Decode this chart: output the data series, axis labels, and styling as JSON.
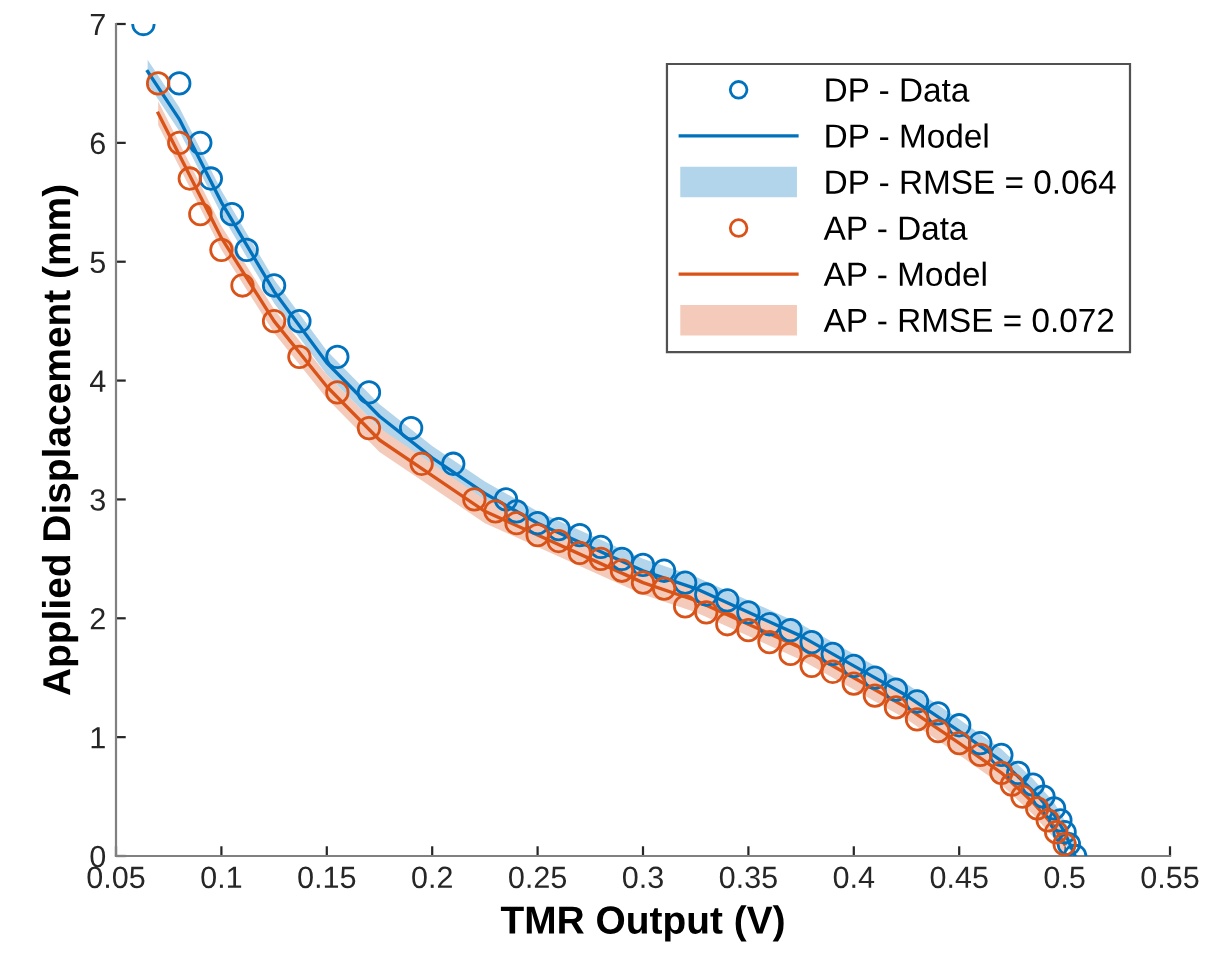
{
  "chart_data": {
    "type": "scatter",
    "xlabel": "TMR Output (V)",
    "ylabel": "Applied Displacement (mm)",
    "xlim": [
      0.05,
      0.55
    ],
    "xticks": [
      0.05,
      0.1,
      0.15,
      0.2,
      0.25,
      0.3,
      0.35,
      0.4,
      0.45,
      0.5,
      0.55
    ],
    "ylim": [
      0,
      7
    ],
    "yticks": [
      0,
      1,
      2,
      3,
      4,
      5,
      6,
      7
    ],
    "grid": false,
    "legend": "top right",
    "annotations": [
      "DP - RMSE = 0.064",
      "AP - RMSE = 0.072"
    ],
    "series": [
      {
        "marker": "circle",
        "name": "DP - Data",
        "color": "#0072bd",
        "x": [
          0.063,
          0.08,
          0.09,
          0.095,
          0.105,
          0.112,
          0.125,
          0.137,
          0.155,
          0.17,
          0.19,
          0.21,
          0.235,
          0.24,
          0.25,
          0.26,
          0.27,
          0.28,
          0.29,
          0.3,
          0.31,
          0.32,
          0.33,
          0.34,
          0.35,
          0.36,
          0.37,
          0.38,
          0.39,
          0.4,
          0.41,
          0.42,
          0.43,
          0.44,
          0.45,
          0.46,
          0.47,
          0.478,
          0.485,
          0.49,
          0.495,
          0.498,
          0.5,
          0.502,
          0.505
        ],
        "values": [
          7.0,
          6.5,
          6.0,
          5.7,
          5.4,
          5.1,
          4.8,
          4.5,
          4.2,
          3.9,
          3.6,
          3.3,
          3.0,
          2.9,
          2.8,
          2.75,
          2.7,
          2.6,
          2.5,
          2.45,
          2.4,
          2.3,
          2.2,
          2.15,
          2.05,
          1.95,
          1.9,
          1.8,
          1.7,
          1.6,
          1.5,
          1.4,
          1.3,
          1.2,
          1.1,
          0.95,
          0.85,
          0.7,
          0.6,
          0.5,
          0.4,
          0.3,
          0.2,
          0.1,
          0.0
        ]
      },
      {
        "type": "line",
        "marker": "none",
        "name": "DP - Model",
        "color": "#0072bd",
        "x": [
          0.065,
          0.08,
          0.1,
          0.125,
          0.15,
          0.175,
          0.2,
          0.225,
          0.25,
          0.275,
          0.3,
          0.325,
          0.35,
          0.375,
          0.4,
          0.425,
          0.45,
          0.47,
          0.485,
          0.495,
          0.5,
          0.505
        ],
        "values": [
          6.6,
          6.2,
          5.5,
          4.75,
          4.15,
          3.7,
          3.35,
          3.05,
          2.8,
          2.6,
          2.4,
          2.25,
          2.05,
          1.85,
          1.6,
          1.35,
          1.05,
          0.8,
          0.55,
          0.35,
          0.2,
          0.0
        ],
        "lower": [
          6.5,
          6.1,
          5.4,
          4.65,
          4.05,
          3.6,
          3.25,
          2.95,
          2.7,
          2.5,
          2.3,
          2.15,
          1.95,
          1.75,
          1.5,
          1.25,
          0.95,
          0.7,
          0.45,
          0.25,
          0.1,
          0.0
        ],
        "upper": [
          6.7,
          6.3,
          5.6,
          4.85,
          4.25,
          3.8,
          3.45,
          3.15,
          2.9,
          2.7,
          2.5,
          2.35,
          2.15,
          1.95,
          1.7,
          1.45,
          1.15,
          0.9,
          0.65,
          0.45,
          0.3,
          0.1
        ]
      },
      {
        "marker": "circle",
        "name": "AP - Data",
        "color": "#d95319",
        "x": [
          0.07,
          0.08,
          0.085,
          0.09,
          0.1,
          0.11,
          0.125,
          0.137,
          0.155,
          0.17,
          0.195,
          0.22,
          0.23,
          0.24,
          0.25,
          0.26,
          0.27,
          0.28,
          0.29,
          0.3,
          0.31,
          0.32,
          0.33,
          0.34,
          0.35,
          0.36,
          0.37,
          0.38,
          0.39,
          0.4,
          0.41,
          0.42,
          0.43,
          0.44,
          0.45,
          0.46,
          0.47,
          0.475,
          0.48,
          0.487,
          0.492,
          0.496,
          0.5
        ],
        "values": [
          6.5,
          6.0,
          5.7,
          5.4,
          5.1,
          4.8,
          4.5,
          4.2,
          3.9,
          3.6,
          3.3,
          3.0,
          2.9,
          2.8,
          2.7,
          2.65,
          2.55,
          2.5,
          2.4,
          2.3,
          2.25,
          2.1,
          2.05,
          1.95,
          1.9,
          1.8,
          1.7,
          1.6,
          1.55,
          1.45,
          1.35,
          1.25,
          1.15,
          1.05,
          0.95,
          0.85,
          0.7,
          0.6,
          0.5,
          0.4,
          0.3,
          0.2,
          0.1
        ]
      },
      {
        "type": "line",
        "marker": "none",
        "name": "AP - Model",
        "color": "#d95319",
        "x": [
          0.07,
          0.08,
          0.1,
          0.125,
          0.15,
          0.175,
          0.2,
          0.225,
          0.25,
          0.275,
          0.3,
          0.325,
          0.35,
          0.375,
          0.4,
          0.425,
          0.45,
          0.47,
          0.485,
          0.495,
          0.5
        ],
        "values": [
          6.25,
          5.9,
          5.2,
          4.5,
          3.95,
          3.5,
          3.2,
          2.9,
          2.7,
          2.5,
          2.3,
          2.15,
          1.95,
          1.75,
          1.5,
          1.25,
          0.95,
          0.7,
          0.45,
          0.25,
          0.1
        ],
        "lower": [
          6.15,
          5.8,
          5.1,
          4.4,
          3.85,
          3.4,
          3.1,
          2.8,
          2.6,
          2.4,
          2.2,
          2.05,
          1.85,
          1.65,
          1.4,
          1.15,
          0.85,
          0.6,
          0.35,
          0.15,
          0.0
        ],
        "upper": [
          6.35,
          6.0,
          5.3,
          4.6,
          4.05,
          3.6,
          3.3,
          3.0,
          2.8,
          2.6,
          2.4,
          2.25,
          2.05,
          1.85,
          1.6,
          1.35,
          1.05,
          0.8,
          0.55,
          0.35,
          0.2
        ]
      }
    ]
  }
}
